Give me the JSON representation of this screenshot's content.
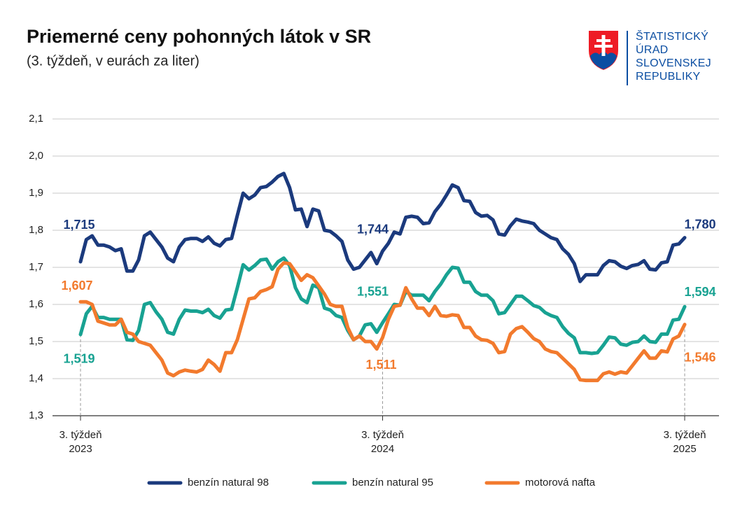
{
  "chart_data": {
    "type": "line",
    "title": "Priemerné ceny pohonných látok v SR",
    "subtitle": "(3. týždeň, v eurách za liter)",
    "logo": [
      "ŠTATISTICKÝ",
      "ÚRAD",
      "SLOVENSKEJ",
      "REPUBLIKY"
    ],
    "categories": [
      "3. týždeň 2023",
      null,
      null,
      null,
      null,
      null,
      null,
      null,
      null,
      null,
      null,
      null,
      null,
      null,
      null,
      null,
      null,
      null,
      null,
      null,
      null,
      null,
      null,
      null,
      null,
      null,
      null,
      null,
      null,
      null,
      null,
      null,
      null,
      null,
      null,
      null,
      null,
      null,
      null,
      null,
      null,
      null,
      null,
      null,
      null,
      null,
      null,
      null,
      null,
      null,
      null,
      null,
      "3. týždeň 2024",
      null,
      null,
      null,
      null,
      null,
      null,
      null,
      null,
      null,
      null,
      null,
      null,
      null,
      null,
      null,
      null,
      null,
      null,
      null,
      null,
      null,
      null,
      null,
      null,
      null,
      null,
      null,
      null,
      null,
      null,
      null,
      null,
      null,
      null,
      null,
      null,
      null,
      null,
      null,
      null,
      null,
      null,
      null,
      null,
      null,
      null,
      null,
      null,
      null,
      null,
      null,
      "3. týždeň 2025"
    ],
    "ylim": [
      1.3,
      2.1
    ],
    "yticks": [
      {
        "value": 1.3,
        "label": "1,3"
      },
      {
        "value": 1.4,
        "label": "1,4"
      },
      {
        "value": 1.5,
        "label": "1,5"
      },
      {
        "value": 1.6,
        "label": "1,6"
      },
      {
        "value": 1.7,
        "label": "1,7"
      },
      {
        "value": 1.8,
        "label": "1,8"
      },
      {
        "value": 1.9,
        "label": "1,9"
      },
      {
        "value": 2.0,
        "label": "2,0"
      },
      {
        "value": 2.1,
        "label": "2,1"
      }
    ],
    "grid": true,
    "legend": "bottom",
    "series": [
      {
        "name": "benzín natural 98",
        "color": "#1b3a7d",
        "values": [
          1.715,
          1.775,
          1.785,
          1.76,
          1.76,
          1.755,
          1.745,
          1.75,
          1.69,
          1.69,
          1.72,
          1.785,
          1.795,
          1.775,
          1.755,
          1.725,
          1.715,
          1.755,
          1.775,
          1.778,
          1.778,
          1.77,
          1.782,
          1.765,
          1.758,
          1.775,
          1.778,
          1.84,
          1.9,
          1.885,
          1.895,
          1.915,
          1.918,
          1.93,
          1.945,
          1.953,
          1.915,
          1.855,
          1.857,
          1.81,
          1.857,
          1.852,
          1.8,
          1.797,
          1.785,
          1.77,
          1.72,
          1.695,
          1.7,
          1.72,
          1.74,
          1.71,
          1.744,
          1.765,
          1.795,
          1.79,
          1.835,
          1.838,
          1.835,
          1.818,
          1.82,
          1.85,
          1.87,
          1.895,
          1.922,
          1.915,
          1.88,
          1.878,
          1.848,
          1.838,
          1.84,
          1.828,
          1.79,
          1.787,
          1.812,
          1.83,
          1.825,
          1.822,
          1.818,
          1.8,
          1.79,
          1.78,
          1.775,
          1.75,
          1.735,
          1.71,
          1.662,
          1.68,
          1.68,
          1.68,
          1.705,
          1.718,
          1.715,
          1.703,
          1.697,
          1.705,
          1.708,
          1.718,
          1.695,
          1.693,
          1.712,
          1.715,
          1.76,
          1.763,
          1.78
        ],
        "value_labels": [
          "1,715",
          null,
          null,
          null,
          null,
          null,
          null,
          null,
          null,
          null,
          null,
          null,
          null,
          null,
          null,
          null,
          null,
          null,
          null,
          null,
          null,
          null,
          null,
          null,
          null,
          null,
          null,
          null,
          null,
          null,
          null,
          null,
          null,
          null,
          null,
          null,
          null,
          null,
          null,
          null,
          null,
          null,
          null,
          null,
          null,
          null,
          null,
          null,
          null,
          null,
          null,
          null,
          "1,744",
          null,
          null,
          null,
          null,
          null,
          null,
          null,
          null,
          null,
          null,
          null,
          null,
          null,
          null,
          null,
          null,
          null,
          null,
          null,
          null,
          null,
          null,
          null,
          null,
          null,
          null,
          null,
          null,
          null,
          null,
          null,
          null,
          null,
          null,
          null,
          null,
          null,
          null,
          null,
          null,
          null,
          null,
          null,
          null,
          null,
          null,
          null,
          null,
          null,
          null,
          null,
          "1,780"
        ]
      },
      {
        "name": "benzín natural 95",
        "color": "#18a292",
        "values": [
          1.519,
          1.575,
          1.595,
          1.565,
          1.565,
          1.56,
          1.56,
          1.56,
          1.505,
          1.503,
          1.53,
          1.6,
          1.605,
          1.58,
          1.56,
          1.525,
          1.52,
          1.56,
          1.585,
          1.582,
          1.582,
          1.578,
          1.587,
          1.57,
          1.563,
          1.585,
          1.587,
          1.645,
          1.707,
          1.693,
          1.705,
          1.72,
          1.722,
          1.695,
          1.715,
          1.725,
          1.705,
          1.645,
          1.615,
          1.605,
          1.652,
          1.645,
          1.59,
          1.585,
          1.57,
          1.565,
          1.53,
          1.505,
          1.515,
          1.545,
          1.548,
          1.525,
          1.551,
          1.575,
          1.6,
          1.598,
          1.635,
          1.625,
          1.625,
          1.625,
          1.61,
          1.635,
          1.655,
          1.68,
          1.7,
          1.698,
          1.66,
          1.66,
          1.635,
          1.625,
          1.625,
          1.61,
          1.575,
          1.578,
          1.6,
          1.622,
          1.622,
          1.61,
          1.597,
          1.592,
          1.578,
          1.57,
          1.565,
          1.54,
          1.522,
          1.51,
          1.47,
          1.47,
          1.468,
          1.47,
          1.49,
          1.512,
          1.51,
          1.493,
          1.49,
          1.498,
          1.5,
          1.515,
          1.5,
          1.498,
          1.52,
          1.52,
          1.558,
          1.56,
          1.594
        ],
        "value_labels": [
          "1,519",
          null,
          null,
          null,
          null,
          null,
          null,
          null,
          null,
          null,
          null,
          null,
          null,
          null,
          null,
          null,
          null,
          null,
          null,
          null,
          null,
          null,
          null,
          null,
          null,
          null,
          null,
          null,
          null,
          null,
          null,
          null,
          null,
          null,
          null,
          null,
          null,
          null,
          null,
          null,
          null,
          null,
          null,
          null,
          null,
          null,
          null,
          null,
          null,
          null,
          null,
          null,
          "1,551",
          null,
          null,
          null,
          null,
          null,
          null,
          null,
          null,
          null,
          null,
          null,
          null,
          null,
          null,
          null,
          null,
          null,
          null,
          null,
          null,
          null,
          null,
          null,
          null,
          null,
          null,
          null,
          null,
          null,
          null,
          null,
          null,
          null,
          null,
          null,
          null,
          null,
          null,
          null,
          null,
          null,
          null,
          null,
          null,
          null,
          null,
          null,
          null,
          null,
          null,
          null,
          "1,594"
        ]
      },
      {
        "name": "motorová nafta",
        "color": "#f27a2d",
        "values": [
          1.607,
          1.607,
          1.6,
          1.555,
          1.55,
          1.545,
          1.545,
          1.56,
          1.525,
          1.52,
          1.5,
          1.495,
          1.49,
          1.47,
          1.45,
          1.415,
          1.408,
          1.418,
          1.423,
          1.42,
          1.418,
          1.425,
          1.45,
          1.438,
          1.42,
          1.47,
          1.47,
          1.505,
          1.56,
          1.615,
          1.618,
          1.635,
          1.64,
          1.648,
          1.695,
          1.712,
          1.71,
          1.688,
          1.665,
          1.68,
          1.672,
          1.65,
          1.628,
          1.6,
          1.595,
          1.595,
          1.538,
          1.505,
          1.515,
          1.5,
          1.5,
          1.48,
          1.511,
          1.56,
          1.595,
          1.598,
          1.645,
          1.615,
          1.59,
          1.59,
          1.57,
          1.595,
          1.57,
          1.568,
          1.572,
          1.57,
          1.538,
          1.538,
          1.515,
          1.505,
          1.503,
          1.495,
          1.47,
          1.473,
          1.52,
          1.535,
          1.54,
          1.525,
          1.508,
          1.5,
          1.48,
          1.473,
          1.47,
          1.455,
          1.44,
          1.425,
          1.397,
          1.395,
          1.395,
          1.395,
          1.413,
          1.418,
          1.412,
          1.418,
          1.415,
          1.435,
          1.455,
          1.475,
          1.455,
          1.455,
          1.475,
          1.472,
          1.507,
          1.515,
          1.546
        ],
        "value_labels": [
          "1,607",
          null,
          null,
          null,
          null,
          null,
          null,
          null,
          null,
          null,
          null,
          null,
          null,
          null,
          null,
          null,
          null,
          null,
          null,
          null,
          null,
          null,
          null,
          null,
          null,
          null,
          null,
          null,
          null,
          null,
          null,
          null,
          null,
          null,
          null,
          null,
          null,
          null,
          null,
          null,
          null,
          null,
          null,
          null,
          null,
          null,
          null,
          null,
          null,
          null,
          null,
          null,
          "1,511",
          null,
          null,
          null,
          null,
          null,
          null,
          null,
          null,
          null,
          null,
          null,
          null,
          null,
          null,
          null,
          null,
          null,
          null,
          null,
          null,
          null,
          null,
          null,
          null,
          null,
          null,
          null,
          null,
          null,
          null,
          null,
          null,
          null,
          null,
          null,
          null,
          null,
          null,
          null,
          null,
          null,
          null,
          null,
          null,
          null,
          null,
          null,
          null,
          null,
          null,
          null,
          "1,546"
        ]
      }
    ]
  }
}
